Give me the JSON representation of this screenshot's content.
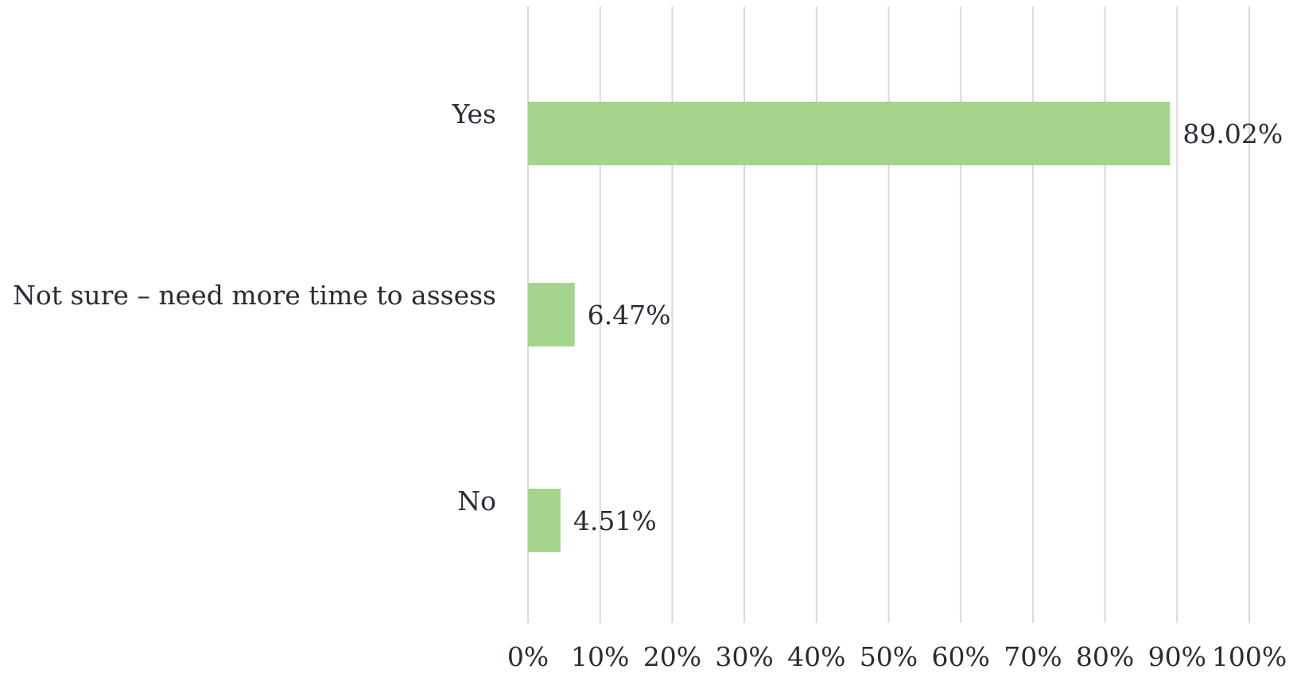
{
  "chart_data": {
    "type": "bar",
    "orientation": "horizontal",
    "categories": [
      "Yes",
      "Not sure – need more time to assess",
      "No"
    ],
    "values": [
      89.02,
      6.47,
      4.51
    ],
    "value_labels": [
      "89.02%",
      "6.47%",
      "4.51%"
    ],
    "xlim": [
      0,
      100
    ],
    "xticks": [
      0,
      10,
      20,
      30,
      40,
      50,
      60,
      70,
      80,
      90,
      100
    ],
    "xtick_labels": [
      "0%",
      "10%",
      "20%",
      "30%",
      "40%",
      "50%",
      "60%",
      "70%",
      "80%",
      "90%",
      "100%"
    ],
    "grid": true,
    "legend": "none",
    "colors": {
      "bar": "#a5d48c",
      "grid": "#d9d9d9",
      "text": "#2b2b36"
    }
  }
}
